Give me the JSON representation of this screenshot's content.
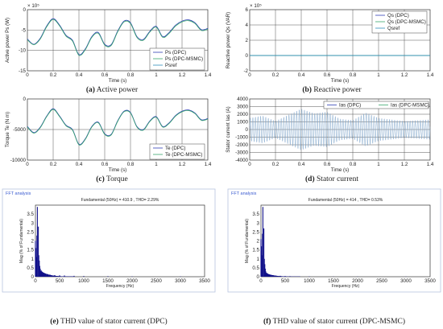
{
  "captions": {
    "a": {
      "letter": "(a)",
      "text": " Active power"
    },
    "b": {
      "letter": "(b)",
      "text": " Reactive power"
    },
    "c": {
      "letter": "(c)",
      "text": " Torque"
    },
    "d": {
      "letter": "(d)",
      "text": " Stator current"
    },
    "e": {
      "letter": "(e)",
      "text": " THD value of stator current (DPC)"
    },
    "f": {
      "letter": "(f)",
      "text": " THD value of stator current (DPC-MSMC)"
    }
  },
  "colors": {
    "dpc": "#2f3fb5",
    "msmc": "#3aa86e",
    "ref": "#2f8fbd",
    "fft": "#11118a",
    "fft_title": "#3a5bd0"
  },
  "chart_data": [
    {
      "id": "a",
      "type": "line",
      "multiplier": "× 10⁵",
      "ylabel": "Active power Ps (W)",
      "xlabel": "Time (s)",
      "xlim": [
        0,
        1.4
      ],
      "ylim": [
        -15,
        0
      ],
      "xticks": [
        "0",
        "0.2",
        "0.4",
        "0.6",
        "0.8",
        "1",
        "1.2",
        "1.4"
      ],
      "yticks": [
        "0",
        "-5",
        "-10",
        "-15"
      ],
      "legend": [
        "Ps (DPC)",
        "Ps (DPC-MSMC)",
        "Psref"
      ],
      "grid": true,
      "series": [
        {
          "name": "Ps (DPC)",
          "color": "dpc",
          "x": [
            0,
            0.05,
            0.1,
            0.15,
            0.2,
            0.25,
            0.3,
            0.35,
            0.4,
            0.45,
            0.5,
            0.55,
            0.6,
            0.65,
            0.7,
            0.75,
            0.8,
            0.85,
            0.9,
            0.95,
            1.0,
            1.05,
            1.1,
            1.15,
            1.2,
            1.25,
            1.3,
            1.35,
            1.4
          ],
          "y": [
            -7.2,
            -8.5,
            -7.0,
            -4.0,
            -2.2,
            -3.8,
            -6.3,
            -7.5,
            -11.0,
            -9.6,
            -6.6,
            -5.6,
            -8.5,
            -8.6,
            -5.3,
            -2.8,
            -3.2,
            -6.6,
            -7.3,
            -5.3,
            -4.1,
            -6.6,
            -5.6,
            -3.8,
            -2.8,
            -2.5,
            -3.2,
            -4.9,
            -4.6
          ]
        },
        {
          "name": "Ps (DPC-MSMC)",
          "color": "msmc",
          "x": [
            0,
            0.05,
            0.1,
            0.15,
            0.2,
            0.25,
            0.3,
            0.35,
            0.4,
            0.45,
            0.5,
            0.55,
            0.6,
            0.65,
            0.7,
            0.75,
            0.8,
            0.85,
            0.9,
            0.95,
            1.0,
            1.05,
            1.1,
            1.15,
            1.2,
            1.25,
            1.3,
            1.35,
            1.4
          ],
          "y": [
            -7.4,
            -8.6,
            -7.2,
            -4.2,
            -2.4,
            -4.0,
            -6.5,
            -7.7,
            -11.2,
            -9.8,
            -6.8,
            -5.8,
            -8.7,
            -8.8,
            -5.5,
            -3.0,
            -3.4,
            -6.8,
            -7.5,
            -5.5,
            -4.3,
            -6.8,
            -5.8,
            -4.0,
            -3.0,
            -2.7,
            -3.4,
            -5.1,
            -4.8
          ]
        }
      ]
    },
    {
      "id": "b",
      "type": "line",
      "multiplier": "× 10⁵",
      "ylabel": "Reactive power Qs (VAR)",
      "xlabel": "Time (s)",
      "xlim": [
        0,
        1.4
      ],
      "ylim": [
        -2,
        6
      ],
      "xticks": [
        "0",
        "0.2",
        "0.4",
        "0.6",
        "0.8",
        "1",
        "1.2",
        "1.4"
      ],
      "yticks": [
        "6",
        "4",
        "2",
        "0",
        "-2"
      ],
      "legend": [
        "Qs (DPC)",
        "Qs (DPC-MSMC)",
        "Qsref"
      ],
      "grid": true,
      "series": [
        {
          "name": "Qs (DPC)",
          "color": "dpc",
          "x": [
            0,
            1.4
          ],
          "y": [
            0,
            0
          ]
        },
        {
          "name": "Qs (DPC-MSMC)",
          "color": "msmc",
          "x": [
            0,
            1.4
          ],
          "y": [
            0,
            0
          ]
        },
        {
          "name": "Qsref",
          "color": "ref",
          "x": [
            0,
            1.4
          ],
          "y": [
            0,
            0
          ]
        }
      ]
    },
    {
      "id": "c",
      "type": "line",
      "ylabel": "Torque Te (N m)",
      "xlabel": "Time (s)",
      "xlim": [
        0,
        1.4
      ],
      "ylim": [
        -10000,
        0
      ],
      "xticks": [
        "0",
        "0.2",
        "0.4",
        "0.6",
        "0.8",
        "1",
        "1.2",
        "1.4"
      ],
      "yticks": [
        "0",
        "-5000",
        "-10000"
      ],
      "legend": [
        "Te (DPC)",
        "Te (DPC-MSMC)"
      ],
      "grid": true,
      "series": [
        {
          "name": "Te (DPC)",
          "color": "dpc",
          "x": [
            0,
            0.05,
            0.1,
            0.15,
            0.2,
            0.25,
            0.3,
            0.35,
            0.4,
            0.45,
            0.5,
            0.55,
            0.6,
            0.65,
            0.7,
            0.75,
            0.8,
            0.85,
            0.9,
            0.95,
            1.0,
            1.05,
            1.1,
            1.15,
            1.2,
            1.25,
            1.3,
            1.35,
            1.4
          ],
          "y": [
            -4500,
            -5500,
            -4600,
            -2800,
            -1600,
            -2800,
            -4300,
            -5000,
            -7400,
            -6500,
            -4500,
            -3800,
            -5700,
            -5800,
            -3600,
            -2000,
            -2200,
            -4500,
            -5000,
            -3600,
            -2900,
            -4500,
            -3900,
            -2700,
            -2000,
            -1800,
            -2300,
            -3400,
            -3200
          ]
        },
        {
          "name": "Te (DPC-MSMC)",
          "color": "msmc",
          "x": [
            0,
            0.05,
            0.1,
            0.15,
            0.2,
            0.25,
            0.3,
            0.35,
            0.4,
            0.45,
            0.5,
            0.55,
            0.6,
            0.65,
            0.7,
            0.75,
            0.8,
            0.85,
            0.9,
            0.95,
            1.0,
            1.05,
            1.1,
            1.15,
            1.2,
            1.25,
            1.3,
            1.35,
            1.4
          ],
          "y": [
            -4600,
            -5600,
            -4700,
            -2900,
            -1700,
            -2900,
            -4400,
            -5100,
            -7500,
            -6600,
            -4600,
            -3900,
            -5800,
            -5900,
            -3700,
            -2100,
            -2300,
            -4600,
            -5100,
            -3700,
            -3000,
            -4600,
            -4000,
            -2800,
            -2100,
            -1900,
            -2400,
            -3500,
            -3300
          ]
        }
      ]
    },
    {
      "id": "d",
      "type": "line",
      "ylabel": "Stator current Ias (A)",
      "xlabel": "Time (s)",
      "xlim": [
        0,
        1.4
      ],
      "ylim": [
        -4000,
        4000
      ],
      "xticks": [
        "0",
        "0.2",
        "0.4",
        "0.6",
        "0.8",
        "1",
        "1.2",
        "1.4"
      ],
      "yticks": [
        "4000",
        "3000",
        "2000",
        "1000",
        "0",
        "-1000",
        "-2000",
        "-3000",
        "-4000"
      ],
      "legend": [
        "Ias (DPC)",
        "Ias (DPC-MSMC)"
      ],
      "grid": true,
      "frequency_hz": 50,
      "series": [
        {
          "name": "Ias (DPC)",
          "color": "dpc",
          "envelope_x": [
            0,
            0.1,
            0.2,
            0.3,
            0.4,
            0.5,
            0.6,
            0.7,
            0.8,
            0.9,
            1.0,
            1.1,
            1.2,
            1.3,
            1.4
          ],
          "envelope_y": [
            1500,
            1800,
            1100,
            1900,
            2700,
            2100,
            2300,
            1400,
            1200,
            2200,
            1500,
            1300,
            1100,
            1200,
            1300
          ]
        },
        {
          "name": "Ias (DPC-MSMC)",
          "color": "msmc",
          "envelope_x": [
            0,
            0.1,
            0.2,
            0.3,
            0.4,
            0.5,
            0.6,
            0.7,
            0.8,
            0.9,
            1.0,
            1.1,
            1.2,
            1.3,
            1.4
          ],
          "envelope_y": [
            1450,
            1750,
            1050,
            1850,
            2650,
            2050,
            2250,
            1350,
            1150,
            2150,
            1450,
            1250,
            1050,
            1150,
            1250
          ]
        }
      ]
    },
    {
      "id": "e",
      "type": "bar",
      "window_title": "FFT analysis",
      "annotation": "Fundamental (50Hz) = 410.9 , THD= 2.29%",
      "ylabel": "Mag (% of Fundamental)",
      "xlabel": "Frequency (Hz)",
      "xlim": [
        0,
        3500
      ],
      "ylim": [
        0,
        4
      ],
      "xticks": [
        "0",
        "500",
        "1000",
        "1500",
        "2000",
        "2500",
        "3000",
        "3500"
      ],
      "yticks": [
        "0",
        "0.5",
        "1",
        "1.5",
        "2",
        "2.5",
        "3",
        "3.5"
      ],
      "spectrum": {
        "freq": [
          0,
          10,
          20,
          30,
          40,
          60,
          70,
          80,
          90,
          100,
          120,
          140,
          160,
          180,
          200,
          250,
          300,
          400,
          500,
          600,
          800,
          1000,
          1500,
          2000,
          3000
        ],
        "mag": [
          2.0,
          1.6,
          1.1,
          2.3,
          3.9,
          2.8,
          1.2,
          0.9,
          0.6,
          0.45,
          0.35,
          0.28,
          0.22,
          0.2,
          0.18,
          0.15,
          0.12,
          0.09,
          0.08,
          0.07,
          0.05,
          0.04,
          0.03,
          0.02,
          0.02
        ]
      }
    },
    {
      "id": "f",
      "type": "bar",
      "window_title": "FFT analysis",
      "annotation": "Fundamental (50Hz) = 414 , THD= 0.53%",
      "ylabel": "Mag (% of Fundamental)",
      "xlabel": "Frequency (Hz)",
      "xlim": [
        0,
        3500
      ],
      "ylim": [
        0,
        4
      ],
      "xticks": [
        "0",
        "500",
        "1000",
        "1500",
        "2000",
        "2500",
        "3000",
        "3500"
      ],
      "yticks": [
        "0",
        "0.5",
        "1",
        "1.5",
        "2",
        "2.5",
        "3",
        "3.5"
      ],
      "spectrum": {
        "freq": [
          0,
          10,
          20,
          30,
          40,
          60,
          70,
          80,
          90,
          100,
          120,
          140,
          160,
          180,
          200,
          250,
          300,
          400,
          500,
          600,
          800,
          1000,
          1500,
          2000,
          3000
        ],
        "mag": [
          2.1,
          1.7,
          1.2,
          2.4,
          3.9,
          2.7,
          1.0,
          0.7,
          0.45,
          0.3,
          0.22,
          0.17,
          0.13,
          0.11,
          0.1,
          0.08,
          0.06,
          0.05,
          0.04,
          0.03,
          0.02,
          0.02,
          0.01,
          0.01,
          0.01
        ]
      }
    }
  ]
}
